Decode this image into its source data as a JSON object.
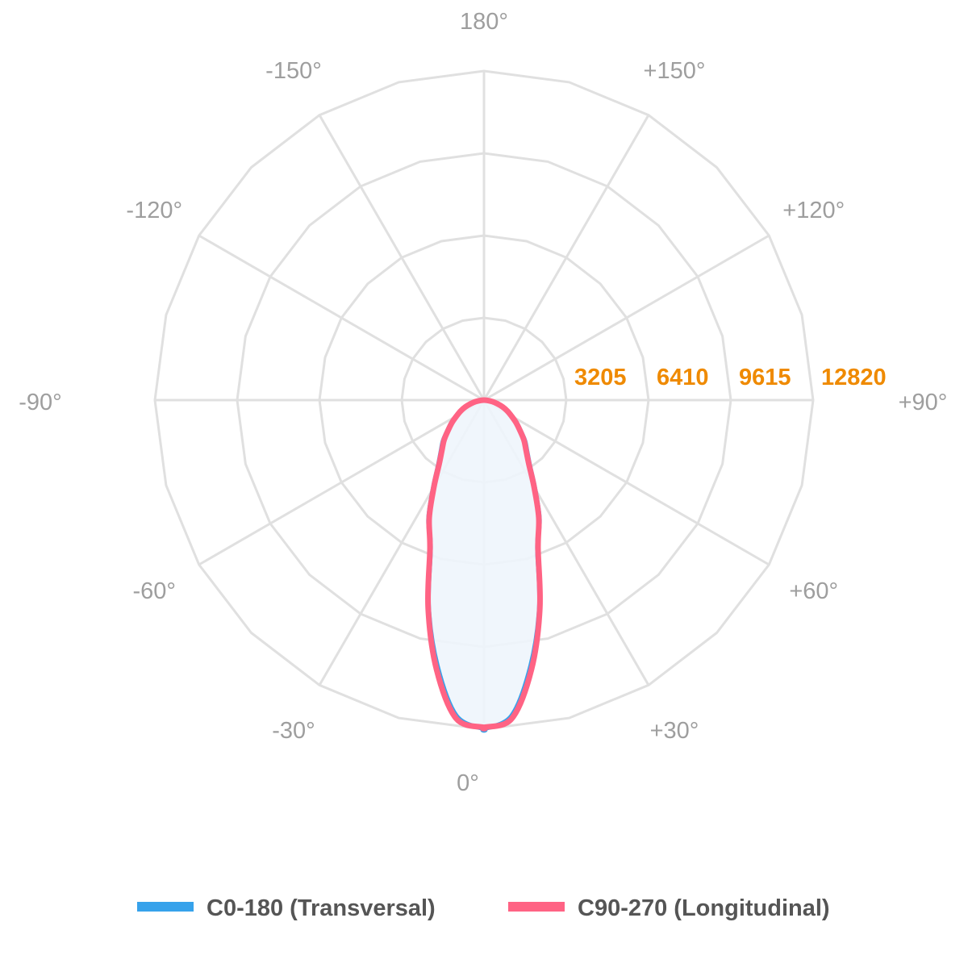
{
  "chart_data": {
    "type": "polar",
    "title": "",
    "radial_ticks": [
      "3205",
      "6410",
      "9615",
      "12820"
    ],
    "radial_range": [
      0,
      12820
    ],
    "angle_labels": [
      {
        "angle": 0,
        "label": "0°"
      },
      {
        "angle": 30,
        "label": "+30°"
      },
      {
        "angle": 60,
        "label": "+60°"
      },
      {
        "angle": 90,
        "label": "+90°"
      },
      {
        "angle": 120,
        "label": "+120°"
      },
      {
        "angle": 150,
        "label": "+150°"
      },
      {
        "angle": 180,
        "label": "180°"
      },
      {
        "angle": -150,
        "label": "-150°"
      },
      {
        "angle": -120,
        "label": "-120°"
      },
      {
        "angle": -90,
        "label": "-90°"
      },
      {
        "angle": -60,
        "label": "-60°"
      },
      {
        "angle": -30,
        "label": "-30°"
      }
    ],
    "grid": true,
    "legend_position": "bottom",
    "angles": [
      0,
      5,
      10,
      15,
      20,
      25,
      30,
      35,
      40,
      45,
      50,
      55,
      60,
      65,
      70,
      75,
      80,
      85,
      90
    ],
    "series": [
      {
        "name": "C0-180 (Transversal)",
        "color": "#36a2eb",
        "fill": "#eef5fc",
        "values": [
          12800,
          12350,
          10500,
          8350,
          6100,
          5100,
          3950,
          3100,
          2600,
          2250,
          1850,
          1550,
          1250,
          1020,
          780,
          540,
          340,
          150,
          0
        ]
      },
      {
        "name": "C90-270 (Longitudinal)",
        "color": "#ff6384",
        "values": [
          12750,
          12450,
          10650,
          8400,
          6150,
          5050,
          3900,
          3050,
          2550,
          2200,
          1820,
          1520,
          1230,
          1000,
          770,
          530,
          330,
          140,
          0
        ]
      }
    ]
  }
}
